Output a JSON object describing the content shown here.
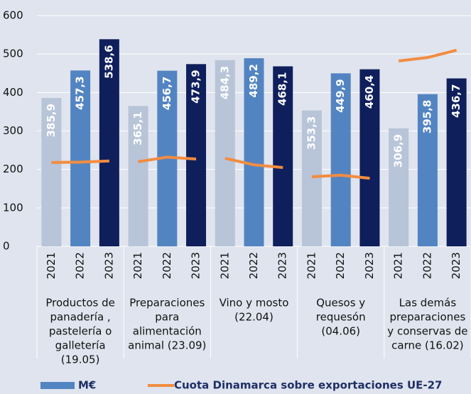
{
  "chart_data": {
    "type": "bar",
    "groups": [
      [
        "Productos de",
        "panadería ,",
        "pastelería o",
        "galletería",
        "(19.05)"
      ],
      [
        "Preparaciones",
        "para",
        "alimentación",
        "animal  (23.09)"
      ],
      [
        "Vino y mosto",
        "(22.04)"
      ],
      [
        "Quesos y",
        "requesón",
        "(04.06)"
      ],
      [
        "Las demás",
        "preparaciones",
        "y conservas de",
        "carne (16.02)"
      ]
    ],
    "years": [
      "2021",
      "2022",
      "2023"
    ],
    "year_colors": [
      "#b8c4d8",
      "#5384c2",
      "#0f1f5c"
    ],
    "series": [
      {
        "name": "M€",
        "color": "#5384c2",
        "values": [
          385.9,
          457.3,
          538.6,
          365.1,
          456.7,
          473.9,
          484.3,
          489.2,
          468.1,
          353.3,
          449.9,
          460.4,
          306.9,
          395.8,
          436.7
        ],
        "value_labels": [
          "385,9",
          "457,3",
          "538,6",
          "365,1",
          "456,7",
          "473,9",
          "484,3",
          "489,2",
          "468,1",
          "353,3",
          "449,9",
          "460,4",
          "306,9",
          "395,8",
          "436,7"
        ]
      },
      {
        "name": "Cuota Dinamarca sobre exportaciones UE-27",
        "color": "#f28c40",
        "type": "line",
        "values": [
          218,
          219,
          222,
          220,
          232,
          227,
          229,
          212,
          205,
          181,
          185,
          177,
          482,
          491,
          510
        ]
      }
    ],
    "ylim": [
      0,
      600
    ],
    "yticks": [
      0,
      100,
      200,
      300,
      400,
      500,
      600
    ],
    "grid": true
  }
}
